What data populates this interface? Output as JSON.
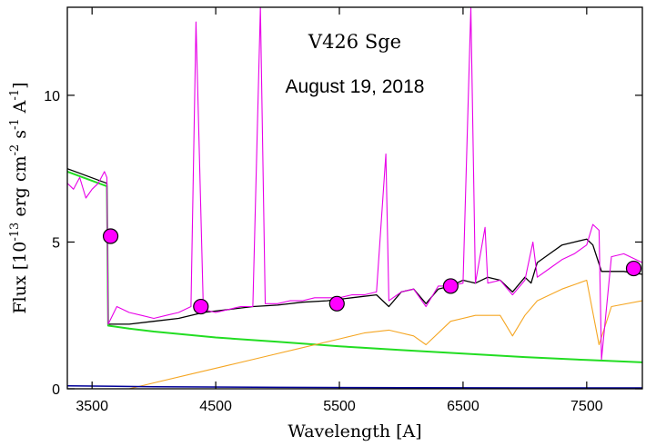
{
  "chart_data": {
    "type": "line",
    "title": "V426 Sge",
    "subtitle": "August 19, 2018",
    "xlabel": "Wavelength [A]",
    "ylabel_parts": {
      "prefix": "Flux [10",
      "exp1": "-13",
      "mid1": " erg cm",
      "exp2": "-2",
      "mid2": " s",
      "exp3": "-1",
      "mid3": "  A",
      "exp4": "-1",
      "suffix": "]"
    },
    "xlim": [
      3300,
      7950
    ],
    "ylim": [
      0,
      13
    ],
    "xticks": [
      3500,
      4500,
      5500,
      6500,
      7500
    ],
    "yticks": [
      0,
      5,
      10
    ],
    "grid": false,
    "legend": "none",
    "colors": {
      "observed": "#e800e8",
      "model_total": "#000000",
      "nebular_continuum": "#22dd22",
      "giant": "#f5a623",
      "hot_component": "#000099",
      "photometry": "#ff00ff"
    },
    "series": [
      {
        "key": "model_total",
        "style": "line",
        "x": [
          3300,
          3620,
          3630,
          3800,
          4000,
          4200,
          4400,
          4600,
          4800,
          5000,
          5200,
          5400,
          5600,
          5800,
          5900,
          6000,
          6100,
          6200,
          6300,
          6400,
          6500,
          6600,
          6700,
          6800,
          6900,
          7000,
          7050,
          7100,
          7200,
          7300,
          7400,
          7500,
          7550,
          7620,
          7700,
          7800,
          7950
        ],
        "y": [
          7.5,
          7.0,
          2.2,
          2.2,
          2.3,
          2.4,
          2.6,
          2.7,
          2.8,
          2.85,
          2.95,
          3.0,
          3.1,
          3.2,
          2.8,
          3.3,
          3.4,
          2.9,
          3.4,
          3.5,
          3.7,
          3.6,
          3.8,
          3.7,
          3.3,
          3.8,
          3.6,
          4.3,
          4.6,
          4.9,
          5.0,
          5.1,
          4.9,
          4.0,
          4.0,
          4.0,
          3.9
        ]
      },
      {
        "key": "nebular_continuum",
        "style": "line",
        "x": [
          3300,
          3620,
          3630,
          3800,
          4000,
          4500,
          5000,
          5500,
          6000,
          6500,
          7000,
          7500,
          7950
        ],
        "y": [
          7.4,
          6.9,
          2.15,
          2.05,
          1.95,
          1.75,
          1.6,
          1.45,
          1.32,
          1.2,
          1.08,
          0.98,
          0.9
        ]
      },
      {
        "key": "giant",
        "style": "line",
        "x": [
          3800,
          4000,
          4300,
          4600,
          4900,
          5200,
          5500,
          5700,
          5900,
          6100,
          6200,
          6400,
          6600,
          6800,
          6900,
          7000,
          7100,
          7300,
          7500,
          7600,
          7700,
          7950
        ],
        "y": [
          0.0,
          0.2,
          0.5,
          0.8,
          1.1,
          1.4,
          1.7,
          1.9,
          2.0,
          1.8,
          1.5,
          2.3,
          2.5,
          2.5,
          1.8,
          2.5,
          3.0,
          3.4,
          3.7,
          1.5,
          2.8,
          3.0
        ]
      },
      {
        "key": "hot_component",
        "style": "line",
        "x": [
          3300,
          4000,
          5000,
          6000,
          7000,
          7950
        ],
        "y": [
          0.1,
          0.07,
          0.05,
          0.04,
          0.03,
          0.03
        ]
      },
      {
        "key": "observed",
        "style": "line",
        "x": [
          3300,
          3350,
          3400,
          3450,
          3500,
          3550,
          3600,
          3620,
          3630,
          3700,
          3800,
          3900,
          4000,
          4100,
          4200,
          4300,
          4340,
          4400,
          4500,
          4600,
          4700,
          4800,
          4861,
          4900,
          5000,
          5100,
          5200,
          5300,
          5400,
          5500,
          5600,
          5700,
          5800,
          5876,
          5900,
          6000,
          6100,
          6200,
          6300,
          6400,
          6500,
          6563,
          6600,
          6678,
          6700,
          6800,
          6900,
          7000,
          7065,
          7100,
          7200,
          7300,
          7400,
          7500,
          7550,
          7600,
          7620,
          7700,
          7800,
          7950
        ],
        "y": [
          7.0,
          6.8,
          7.2,
          6.5,
          6.8,
          7.0,
          7.4,
          7.2,
          2.2,
          2.8,
          2.6,
          2.5,
          2.4,
          2.5,
          2.6,
          2.8,
          12.5,
          2.7,
          2.6,
          2.7,
          2.8,
          2.8,
          13,
          2.9,
          2.9,
          3.0,
          3.0,
          3.1,
          3.1,
          3.1,
          3.2,
          3.2,
          3.3,
          8.0,
          3.0,
          3.3,
          3.4,
          2.8,
          3.5,
          3.5,
          3.6,
          13,
          3.6,
          5.5,
          3.6,
          3.7,
          3.2,
          3.7,
          5.0,
          3.8,
          4.1,
          4.4,
          4.6,
          4.9,
          5.6,
          5.4,
          1.0,
          4.5,
          4.6,
          4.3
        ]
      },
      {
        "key": "photometry",
        "style": "points",
        "x": [
          3650,
          4380,
          5480,
          6400,
          7880
        ],
        "y": [
          5.2,
          2.8,
          2.9,
          3.5,
          4.1
        ]
      }
    ]
  }
}
